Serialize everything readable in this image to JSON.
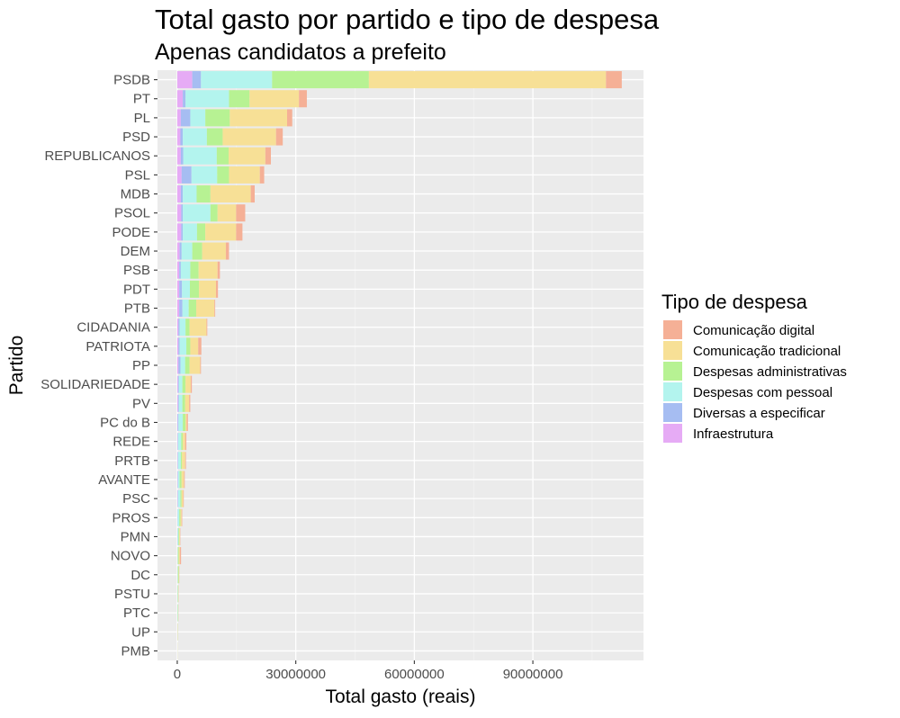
{
  "chart_data": {
    "type": "bar",
    "orientation": "horizontal",
    "stacked": true,
    "title": "Total gasto por partido e tipo de despesa",
    "subtitle": "Apenas candidatos a prefeito",
    "xlabel": "Total gasto (reais)",
    "ylabel": "Partido",
    "xlim": [
      -5000000,
      118000000
    ],
    "xticks": [
      0,
      30000000,
      60000000,
      90000000
    ],
    "xtick_labels": [
      "0",
      "30000000",
      "60000000",
      "90000000"
    ],
    "grid": true,
    "legend_position": "right",
    "legend_title": "Tipo de despesa",
    "categories": [
      "PSDB",
      "PT",
      "PL",
      "PSD",
      "REPUBLICANOS",
      "PSL",
      "MDB",
      "PSOL",
      "PODE",
      "DEM",
      "PSB",
      "PDT",
      "PTB",
      "CIDADANIA",
      "PATRIOTA",
      "PP",
      "SOLIDARIEDADE",
      "PV",
      "PC do B",
      "REDE",
      "PRTB",
      "AVANTE",
      "PSC",
      "PROS",
      "PMN",
      "NOVO",
      "DC",
      "PSTU",
      "PTC",
      "UP",
      "PMB"
    ],
    "series": [
      {
        "name": "Infraestrutura",
        "color": "#E6ABF5",
        "values": [
          3800000,
          1400000,
          900000,
          800000,
          900000,
          1100000,
          900000,
          1000000,
          1000000,
          600000,
          500000,
          500000,
          500000,
          300000,
          300000,
          300000,
          200000,
          200000,
          100000,
          100000,
          100000,
          100000,
          100000,
          50000,
          50000,
          30000,
          30000,
          20000,
          20000,
          10000,
          5000
        ]
      },
      {
        "name": "Diversas a especificar",
        "color": "#A6BDF2",
        "values": [
          2200000,
          700000,
          2400000,
          600000,
          600000,
          2500000,
          500000,
          400000,
          400000,
          500000,
          400000,
          700000,
          800000,
          300000,
          300000,
          500000,
          200000,
          200000,
          200000,
          100000,
          100000,
          100000,
          100000,
          50000,
          50000,
          30000,
          30000,
          20000,
          20000,
          10000,
          5000
        ]
      },
      {
        "name": "Despesas com pessoal",
        "color": "#B3F4EE",
        "values": [
          18000000,
          11000000,
          3800000,
          6100000,
          8500000,
          6500000,
          3500000,
          7000000,
          3600000,
          2700000,
          2400000,
          2000000,
          1600000,
          1500000,
          1700000,
          1200000,
          900000,
          900000,
          1100000,
          800000,
          700000,
          400000,
          600000,
          400000,
          200000,
          100000,
          100000,
          80000,
          80000,
          30000,
          10000
        ]
      },
      {
        "name": "Despesas administrativas",
        "color": "#B7F293",
        "values": [
          24500000,
          5200000,
          6200000,
          4000000,
          3000000,
          3000000,
          3500000,
          1800000,
          2100000,
          2500000,
          2100000,
          2300000,
          1900000,
          1000000,
          1000000,
          1100000,
          800000,
          700000,
          700000,
          400000,
          300000,
          500000,
          300000,
          300000,
          200000,
          200000,
          200000,
          100000,
          100000,
          50000,
          20000
        ]
      },
      {
        "name": "Comunicação tradicional",
        "color": "#F7E096",
        "values": [
          60000000,
          12500000,
          14500000,
          13500000,
          9300000,
          7800000,
          10200000,
          4700000,
          7800000,
          6000000,
          4800000,
          4300000,
          4600000,
          4300000,
          2000000,
          2700000,
          1300000,
          1000000,
          300000,
          600000,
          800000,
          600000,
          400000,
          300000,
          200000,
          300000,
          100000,
          100000,
          50000,
          50000,
          20000
        ]
      },
      {
        "name": "Comunicação digital",
        "color": "#F5B096",
        "values": [
          4000000,
          2000000,
          1300000,
          1700000,
          1400000,
          1100000,
          1000000,
          2300000,
          1600000,
          800000,
          600000,
          500000,
          200000,
          200000,
          800000,
          200000,
          300000,
          300000,
          300000,
          300000,
          200000,
          200000,
          150000,
          150000,
          80000,
          300000,
          50000,
          30000,
          30000,
          20000,
          10000
        ]
      }
    ]
  }
}
